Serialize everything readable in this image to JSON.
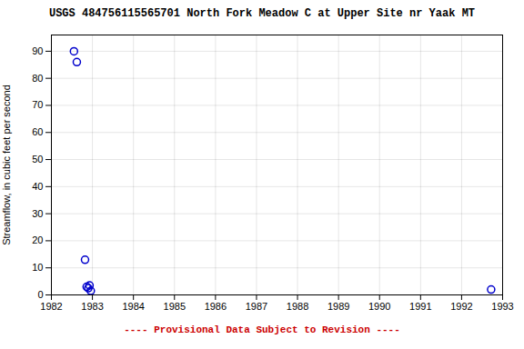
{
  "chart_data": {
    "type": "scatter",
    "title": "USGS 484756115565701 North Fork Meadow C at Upper Site nr Yaak MT",
    "y_label": "Streamflow, in cubic feet per second",
    "annotations": [
      {
        "text": "---- Provisional Data Subject to Revision ----",
        "color": "#cc0000"
      }
    ],
    "x": [
      1982.55,
      1982.62,
      1982.82,
      1982.86,
      1982.9,
      1982.93,
      1982.96,
      1992.72
    ],
    "values": [
      90,
      86,
      13,
      3,
      2.5,
      3.5,
      1.5,
      2
    ],
    "color": "#0000cc",
    "marker": "circle",
    "xlim": [
      1982,
      1993
    ],
    "ylim": [
      0,
      96
    ],
    "xticks": [
      1982,
      1983,
      1984,
      1985,
      1986,
      1987,
      1988,
      1989,
      1990,
      1991,
      1992,
      1993
    ],
    "yticks": [
      0,
      10,
      20,
      30,
      40,
      50,
      60,
      70,
      80,
      90
    ],
    "grid": true
  }
}
